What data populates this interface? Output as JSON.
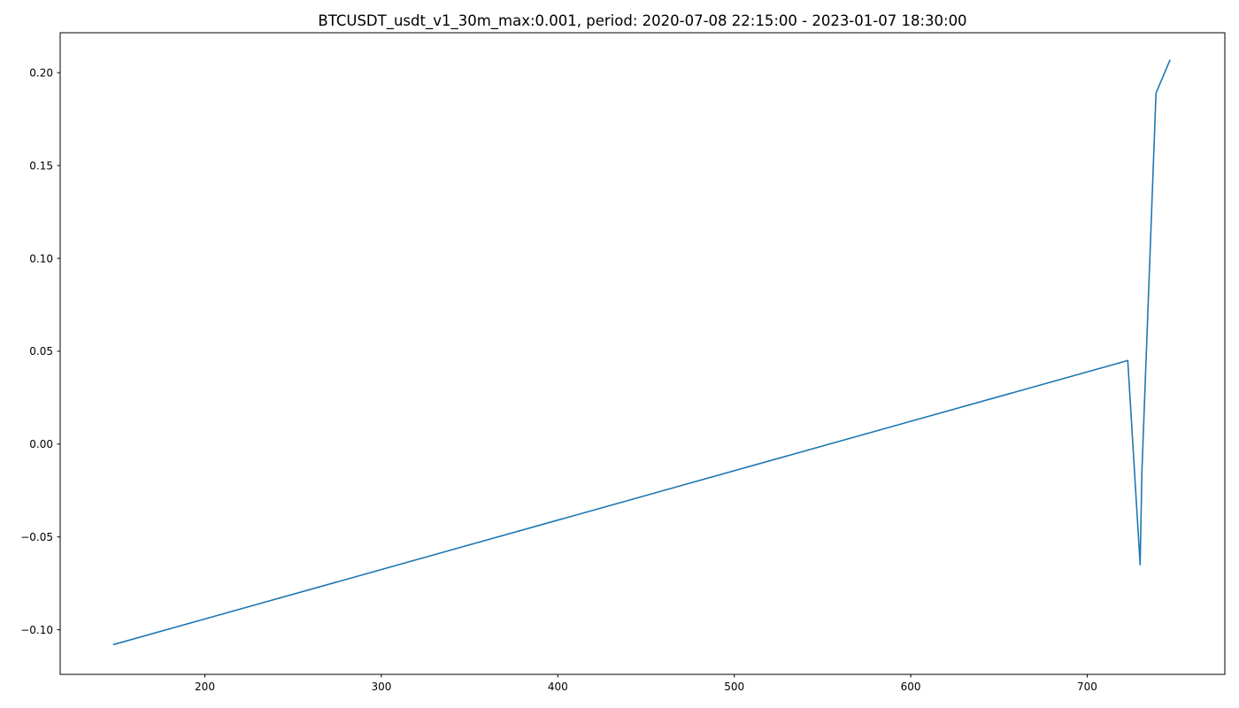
{
  "chart_data": {
    "type": "line",
    "title": "BTCUSDT_usdt_v1_30m_max:0.001, period: 2020-07-08 22:15:00 - 2023-01-07 18:30:00",
    "xlabel": "",
    "ylabel": "",
    "xlim": [
      118,
      778
    ],
    "ylim": [
      -0.124,
      0.2215
    ],
    "x_ticks": [
      200,
      300,
      400,
      500,
      600,
      700
    ],
    "y_ticks": [
      -0.1,
      -0.05,
      0.0,
      0.05,
      0.1,
      0.15,
      0.2
    ],
    "y_tick_labels": [
      "−0.10",
      "−0.05",
      "0.00",
      "0.05",
      "0.10",
      "0.15",
      "0.20"
    ],
    "grid": false,
    "legend": "none",
    "series": [
      {
        "color": "#1f77b4",
        "x": [
          148,
          723,
          730,
          731,
          739,
          747
        ],
        "y": [
          -0.108,
          0.045,
          -0.065,
          -0.015,
          0.189,
          0.207
        ]
      }
    ]
  }
}
